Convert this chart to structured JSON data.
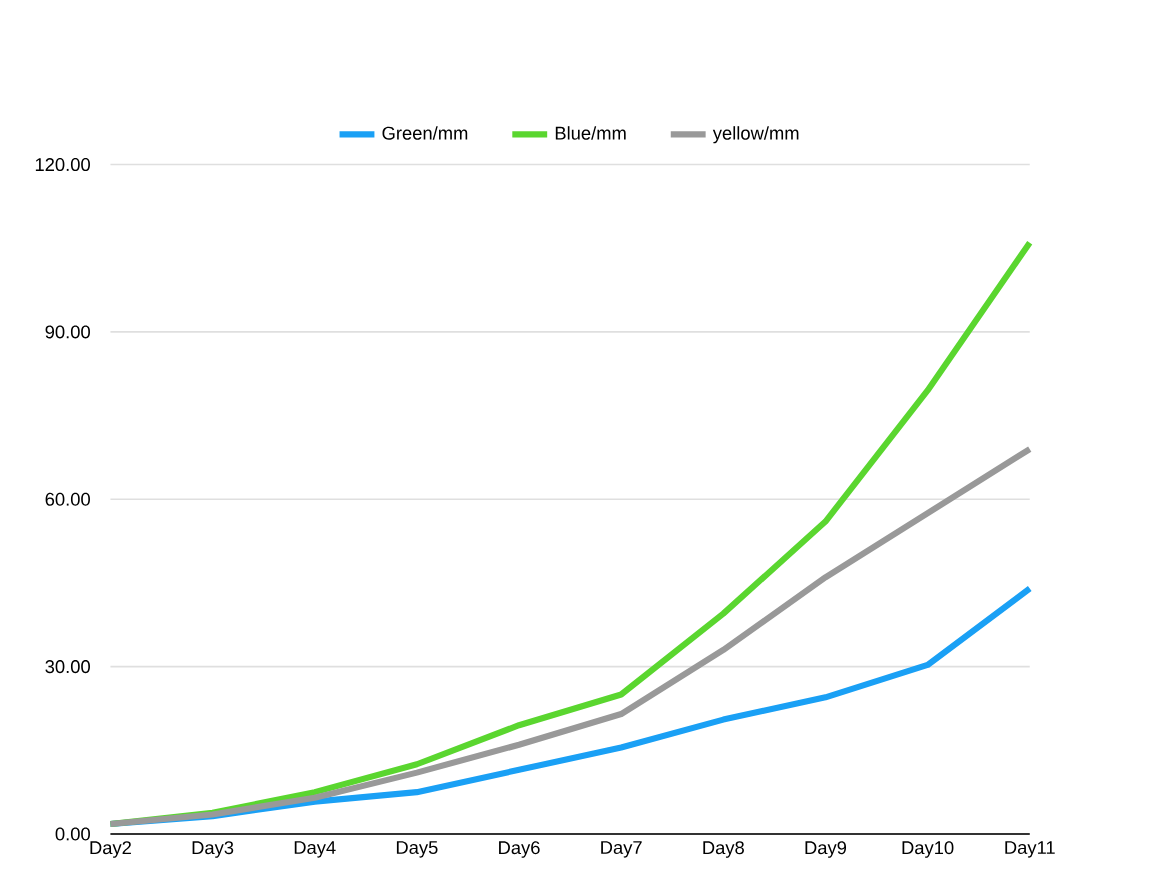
{
  "chart_data": {
    "type": "line",
    "categories": [
      "Day2",
      "Day3",
      "Day4",
      "Day5",
      "Day6",
      "Day7",
      "Day8",
      "Day9",
      "Day10",
      "Day11"
    ],
    "series": [
      {
        "name": "Green/mm",
        "color": "#1aa0f5",
        "values": [
          1.8,
          3.2,
          5.8,
          7.5,
          11.5,
          15.5,
          20.5,
          24.5,
          30.3,
          44
        ]
      },
      {
        "name": "Blue/mm",
        "color": "#5ad62f",
        "values": [
          1.8,
          3.8,
          7.5,
          12.5,
          19.5,
          25,
          39.5,
          56,
          79.5,
          106
        ]
      },
      {
        "name": "yellow/mm",
        "color": "#999999",
        "values": [
          1.8,
          3.5,
          6.5,
          11,
          16,
          21.5,
          33,
          46,
          57.5,
          69
        ]
      }
    ],
    "ylim": [
      0,
      120
    ],
    "yticks": [
      {
        "value": 0,
        "label": "0.00"
      },
      {
        "value": 30,
        "label": "30.00"
      },
      {
        "value": 60,
        "label": "60.00"
      },
      {
        "value": 90,
        "label": "90.00"
      },
      {
        "value": 120,
        "label": "120.00"
      }
    ],
    "grid": "y",
    "legend": "top",
    "marker": "none",
    "line_style": "solid"
  }
}
